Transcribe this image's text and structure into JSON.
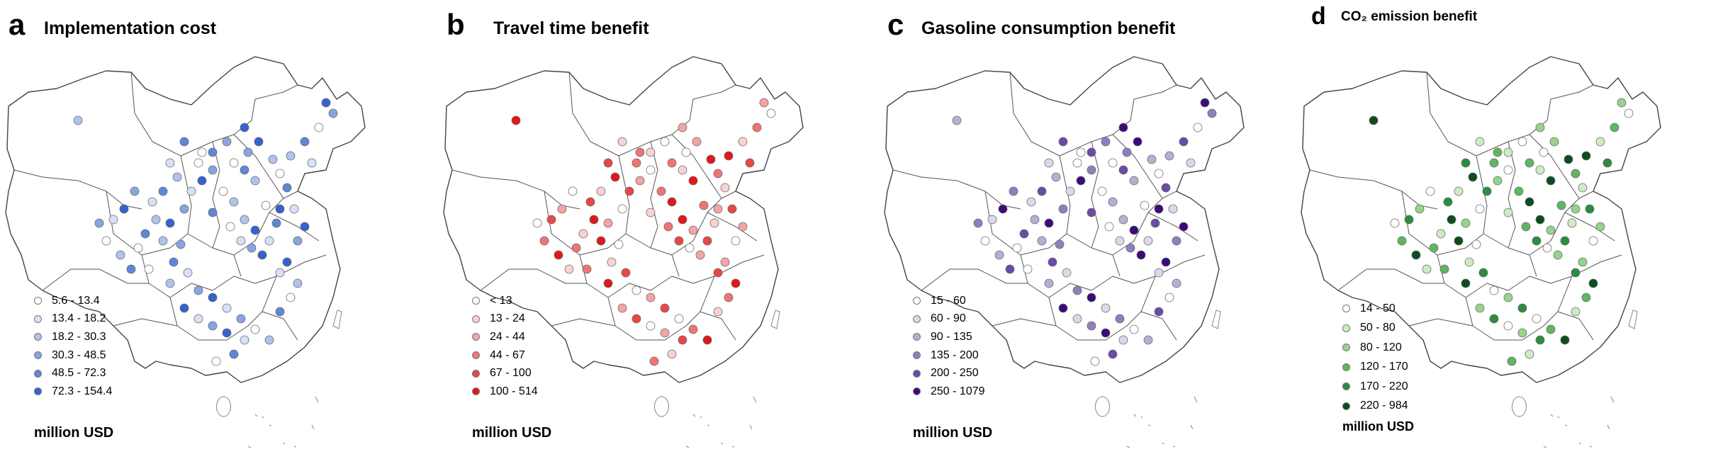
{
  "panels": [
    {
      "letter": "a",
      "title": "Implementation cost",
      "unit": "million USD",
      "legend": [
        "5.6 - 13.4",
        "13.4 - 18.2",
        "18.2 - 30.3",
        "30.3 - 48.5",
        "48.5 - 72.3",
        "72.3 - 154.4"
      ],
      "colors": [
        "#ffffff",
        "#d7e1f5",
        "#afc3ec",
        "#87a5e2",
        "#5f86d8",
        "#3562cf"
      ]
    },
    {
      "letter": "b",
      "title": "Travel time benefit",
      "unit": "million USD",
      "legend": [
        "< 13",
        "13 - 24",
        "24 - 44",
        "44 - 67",
        "67 - 100",
        "100 - 514"
      ],
      "colors": [
        "#ffffff",
        "#fad1d1",
        "#f5a3a3",
        "#ef7474",
        "#e94646",
        "#e01818"
      ]
    },
    {
      "letter": "c",
      "title": "Gasoline consumption benefit",
      "unit": "million USD",
      "legend": [
        "15 - 60",
        "60 - 90",
        "90 - 135",
        "135 - 200",
        "200 - 250",
        "250 - 1079"
      ],
      "colors": [
        "#ffffff",
        "#dcd8ea",
        "#b6aed4",
        "#8e80bd",
        "#6a4ba8",
        "#3d0a7a"
      ]
    },
    {
      "letter": "d",
      "title": "CO₂ emission benefit",
      "unit": "million USD",
      "legend": [
        "14 - 50",
        "50 - 80",
        "80 - 120",
        "120 - 170",
        "170 - 220",
        "220 - 984"
      ],
      "colors": [
        "#ffffff",
        "#cdecc4",
        "#98d28c",
        "#5eb760",
        "#2b8d40",
        "#0b4d21"
      ]
    }
  ]
}
